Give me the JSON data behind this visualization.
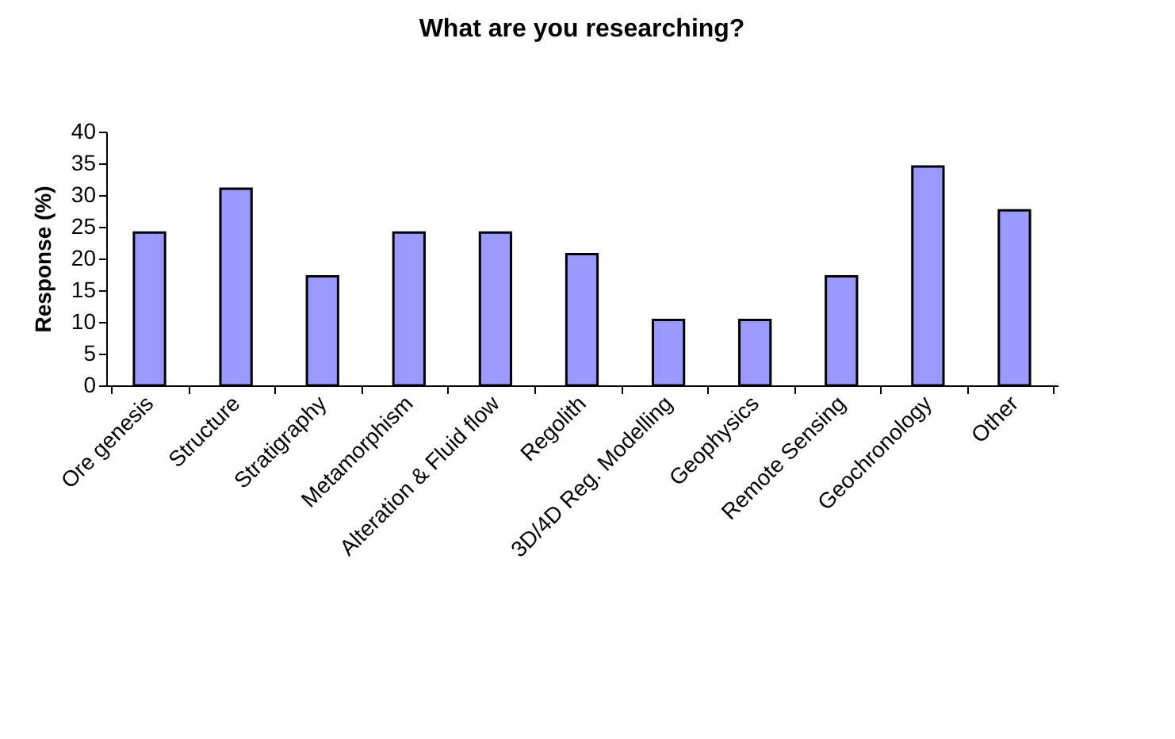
{
  "chart_data": {
    "type": "bar",
    "title": "What are you researching?",
    "ylabel": "Response (%)",
    "categories": [
      "Ore genesis",
      "Structure",
      "Stratigraphy",
      "Metamorphism",
      "Alteration & Fluid flow",
      "Regolith",
      "3D/4D Reg. Modelling",
      "Geophysics",
      "Remote Sensing",
      "Geochronology",
      "Other"
    ],
    "values": [
      24.1,
      31,
      17.2,
      24.1,
      24.1,
      20.7,
      10.3,
      10.3,
      17.2,
      34.5,
      27.6
    ],
    "color": "#9999ff",
    "ylim": [
      0,
      40
    ],
    "yticks": [
      0,
      5,
      10,
      15,
      20,
      25,
      30,
      35,
      40
    ],
    "grid": false
  }
}
